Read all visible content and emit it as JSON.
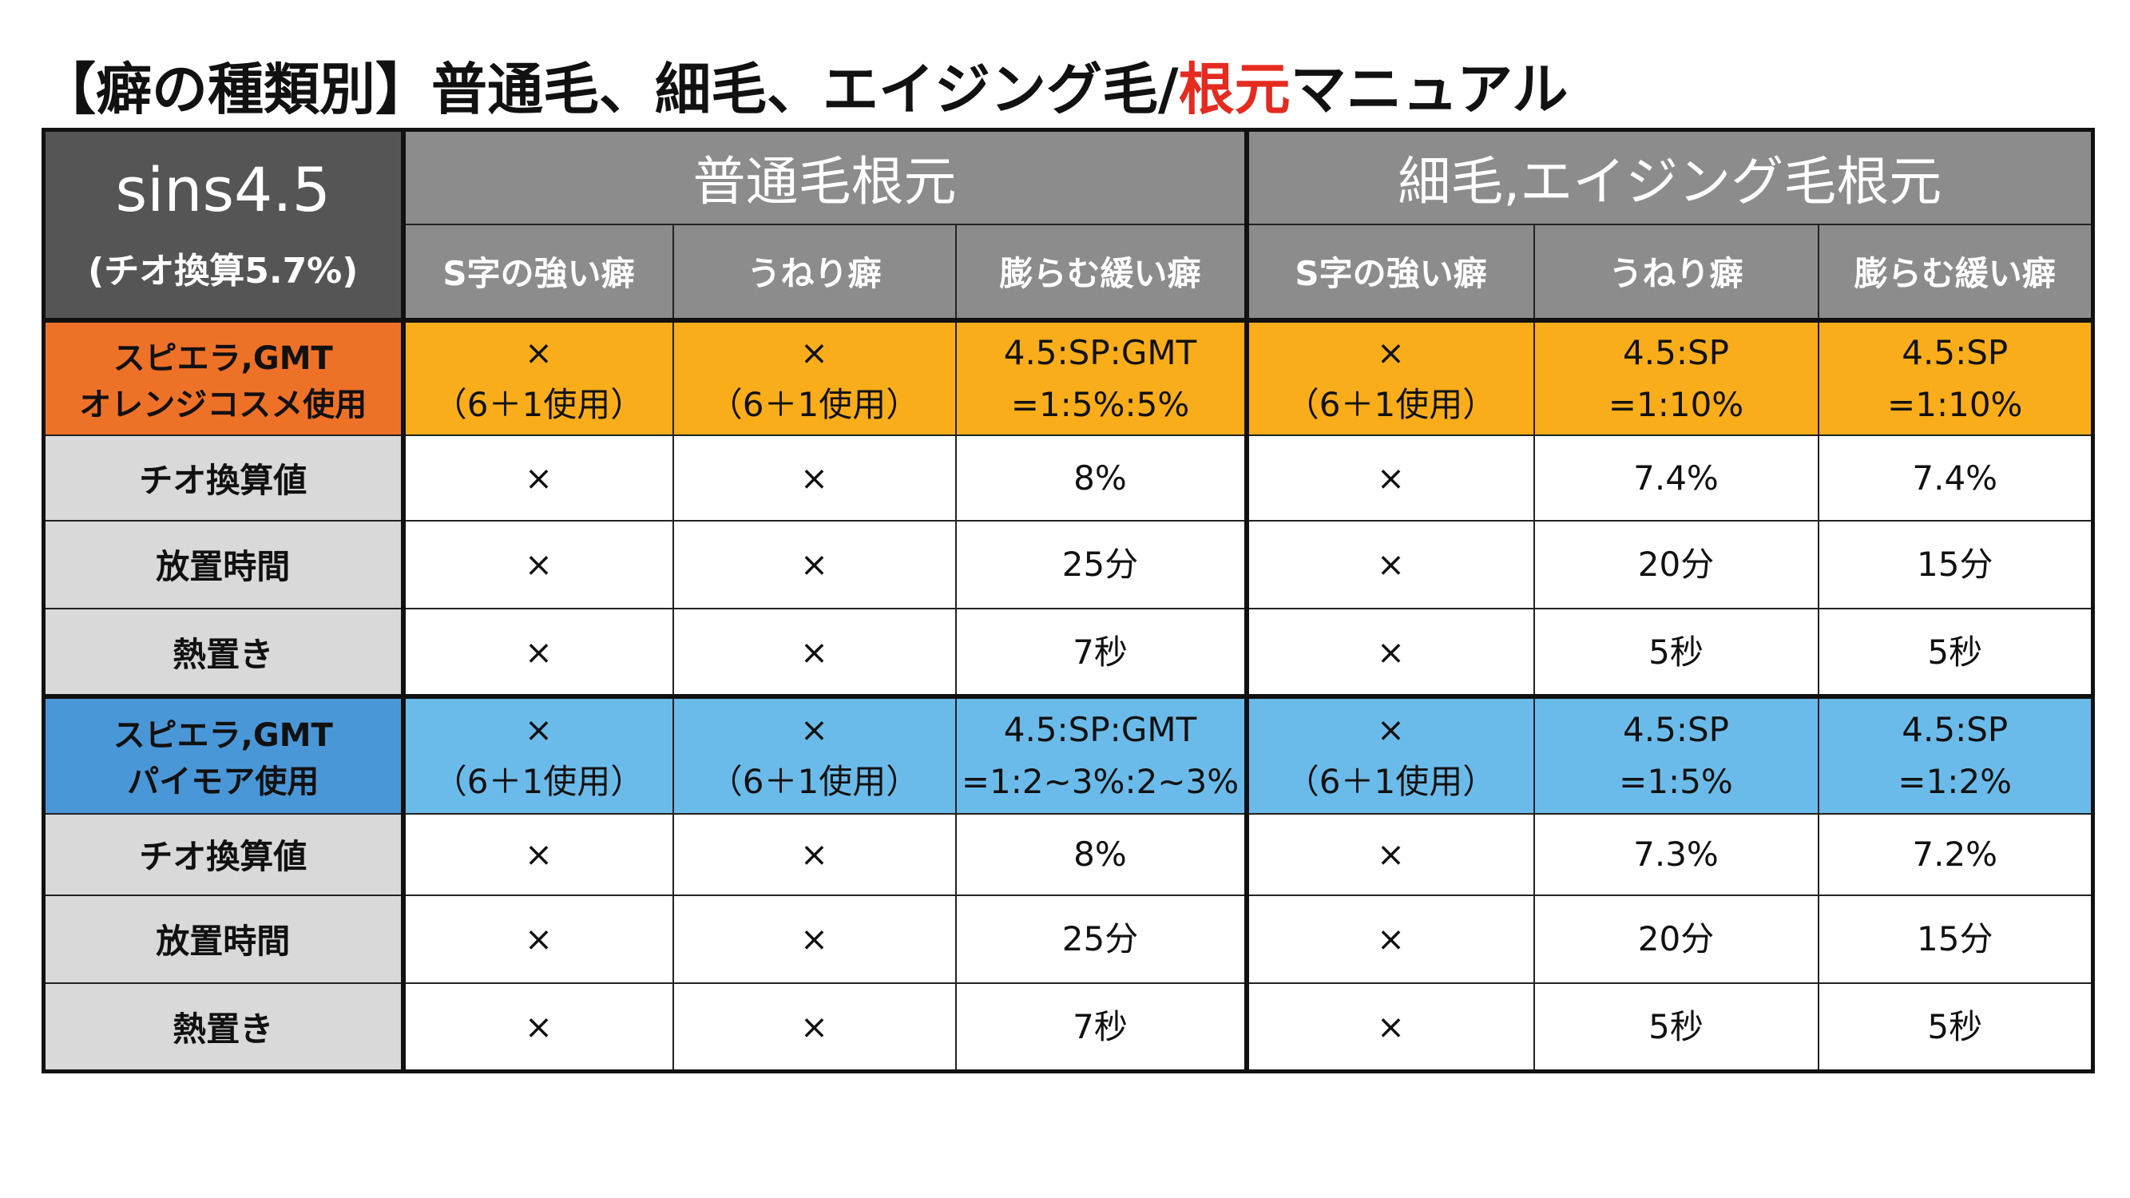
{
  "title": {
    "prefix": "【癖の種類別】普通毛、細毛、エイジング毛/",
    "highlight": "根元",
    "suffix": "マニュアル"
  },
  "colors": {
    "title_highlight": "#e52b20",
    "header_dark": "#555555",
    "header_gray": "#8c8c8c",
    "orange_label": "#ee7128",
    "orange_cell": "#f9ad1a",
    "blue_label": "#4a97d8",
    "blue_cell": "#6bbbea",
    "gray_label": "#d9d9d9"
  },
  "corner": {
    "main": "sins4.5",
    "sub": "(チオ換算5.7%)"
  },
  "groups": [
    "普通毛根元",
    "細毛,エイジング毛根元"
  ],
  "subheaders": [
    "S字の強い癖",
    "うねり癖",
    "膨らむ緩い癖",
    "S字の強い癖",
    "うねり癖",
    "膨らむ緩い癖"
  ],
  "sections": [
    {
      "label": [
        "スピエラ,GMT",
        "オレンジコスメ使用"
      ],
      "recipe": [
        [
          "×",
          "（6＋1使用）"
        ],
        [
          "×",
          "（6＋1使用）"
        ],
        [
          "4.5:SP:GMT",
          "=1:5%:5%"
        ],
        [
          "×",
          "（6＋1使用）"
        ],
        [
          "4.5:SP",
          "=1:10%"
        ],
        [
          "4.5:SP",
          "=1:10%"
        ]
      ],
      "rows": [
        {
          "label": "チオ換算値",
          "values": [
            "×",
            "×",
            "8%",
            "×",
            "7.4%",
            "7.4%"
          ]
        },
        {
          "label": "放置時間",
          "values": [
            "×",
            "×",
            "25分",
            "×",
            "20分",
            "15分"
          ]
        },
        {
          "label": "熱置き",
          "values": [
            "×",
            "×",
            "7秒",
            "×",
            "5秒",
            "5秒"
          ]
        }
      ]
    },
    {
      "label": [
        "スピエラ,GMT",
        "パイモア使用"
      ],
      "recipe": [
        [
          "×",
          "（6＋1使用）"
        ],
        [
          "×",
          "（6＋1使用）"
        ],
        [
          "4.5:SP:GMT",
          "=1:2~3%:2~3%"
        ],
        [
          "×",
          "（6＋1使用）"
        ],
        [
          "4.5:SP",
          "=1:5%"
        ],
        [
          "4.5:SP",
          "=1:2%"
        ]
      ],
      "rows": [
        {
          "label": "チオ換算値",
          "values": [
            "×",
            "×",
            "8%",
            "×",
            "7.3%",
            "7.2%"
          ]
        },
        {
          "label": "放置時間",
          "values": [
            "×",
            "×",
            "25分",
            "×",
            "20分",
            "15分"
          ]
        },
        {
          "label": "熱置き",
          "values": [
            "×",
            "×",
            "7秒",
            "×",
            "5秒",
            "5秒"
          ]
        }
      ]
    }
  ]
}
